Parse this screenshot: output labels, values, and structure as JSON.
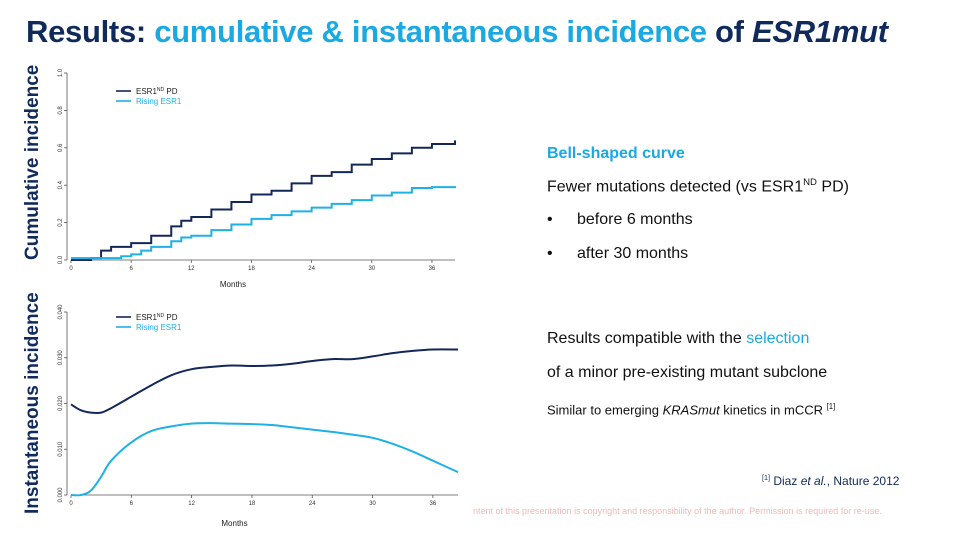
{
  "title": {
    "part1": "Results: ",
    "part2": "cumulative & instantaneous incidence",
    "part3": " of ",
    "part4": "ESR1mut"
  },
  "colors": {
    "navy": "#14275a",
    "cyan": "#1fb0e6",
    "title_navy": "#102a5c",
    "accent": "#1aa9e2"
  },
  "right": {
    "heading": "Bell-shaped curve",
    "line1_a": "Fewer mutations detected (vs ESR1",
    "line1_sup": "ND",
    "line1_b": " PD)",
    "bullet": "•",
    "bullet1": "before 6 months",
    "bullet2": "after 30 months",
    "compat_a": "Results compatible with the ",
    "compat_b": "selection",
    "compat_c": "of a minor pre-existing mutant subclone",
    "similar_a": "Similar to emerging ",
    "similar_b": "KRASmut",
    "similar_c": " kinetics in mCCR ",
    "similar_sup": "[1]"
  },
  "reference": {
    "sup": "[1]",
    "a": " Diaz ",
    "b": "et al.",
    "c": ", Nature 2012"
  },
  "footer": "ntent of this presentation is copyright and responsibility of the author. Permission is required for re-use.",
  "chart_data": [
    {
      "type": "line",
      "ylabel": "Cumulative incidence",
      "xlabel": "Months",
      "xlim": [
        0,
        38.3
      ],
      "ylim": [
        0,
        1.0
      ],
      "xticks": [
        "0",
        "6",
        "12",
        "18",
        "24",
        "30",
        "36"
      ],
      "yticks": [
        "0.0",
        "0.2",
        "0.4",
        "0.6",
        "0.8",
        "1.0"
      ],
      "legend_position": "top-left",
      "series": [
        {
          "name": "ESR1ND PD",
          "name_main": "ESR1",
          "name_sup": "ND",
          "name_tail": " PD",
          "color": "#14275a",
          "x": [
            0,
            1.5,
            2,
            3,
            4,
            6,
            8,
            10,
            11,
            12,
            14,
            16,
            18,
            20,
            22,
            24,
            26,
            28,
            30,
            32,
            34,
            36,
            38.3
          ],
          "y": [
            0,
            0,
            0.01,
            0.05,
            0.07,
            0.09,
            0.13,
            0.18,
            0.21,
            0.23,
            0.27,
            0.31,
            0.35,
            0.37,
            0.41,
            0.45,
            0.47,
            0.51,
            0.54,
            0.57,
            0.6,
            0.62,
            0.64
          ]
        },
        {
          "name": "Rising ESR1",
          "color": "#1fb0e6",
          "x": [
            0,
            2,
            4,
            5,
            6,
            7,
            8,
            10,
            11,
            12,
            14,
            16,
            18,
            20,
            22,
            24,
            26,
            28,
            30,
            32,
            34,
            36,
            38.3
          ],
          "y": [
            0.01,
            0.01,
            0.01,
            0.02,
            0.03,
            0.05,
            0.07,
            0.1,
            0.12,
            0.13,
            0.16,
            0.19,
            0.22,
            0.24,
            0.26,
            0.28,
            0.3,
            0.32,
            0.345,
            0.36,
            0.385,
            0.39,
            0.395
          ]
        }
      ]
    },
    {
      "type": "line",
      "ylabel": "Instantaneous incidence",
      "xlabel": "Months",
      "xlim": [
        0,
        38.5
      ],
      "ylim": [
        0,
        0.04
      ],
      "xticks": [
        "0",
        "6",
        "12",
        "18",
        "24",
        "30",
        "36"
      ],
      "yticks": [
        "0.000",
        "0.010",
        "0.020",
        "0.030",
        "0.040"
      ],
      "legend_position": "top-left",
      "series": [
        {
          "name": "ESR1ND PD",
          "name_main": "ESR1",
          "name_sup": "ND",
          "name_tail": " PD",
          "color": "#14275a",
          "x": [
            0,
            1,
            2,
            3,
            4,
            6,
            8,
            10,
            12,
            14,
            16,
            18,
            20,
            22,
            24,
            26,
            28,
            30,
            32,
            34,
            36,
            38.5
          ],
          "y": [
            0.0198,
            0.0185,
            0.018,
            0.018,
            0.019,
            0.0215,
            0.024,
            0.0262,
            0.0275,
            0.028,
            0.0283,
            0.0282,
            0.0283,
            0.0287,
            0.0293,
            0.0297,
            0.0297,
            0.0303,
            0.031,
            0.0315,
            0.0318,
            0.0318
          ]
        },
        {
          "name": "Rising ESR1",
          "color": "#1fb0e6",
          "x": [
            0,
            1,
            2,
            3,
            4,
            6,
            8,
            10,
            12,
            14,
            16,
            18,
            20,
            22,
            24,
            26,
            28,
            30,
            32,
            34,
            36,
            38.5
          ],
          "y": [
            0,
            0,
            0.001,
            0.004,
            0.0075,
            0.0115,
            0.014,
            0.015,
            0.0156,
            0.0157,
            0.0156,
            0.0155,
            0.0153,
            0.0148,
            0.0143,
            0.0138,
            0.0132,
            0.0125,
            0.0112,
            0.0095,
            0.0075,
            0.005
          ]
        }
      ]
    }
  ]
}
